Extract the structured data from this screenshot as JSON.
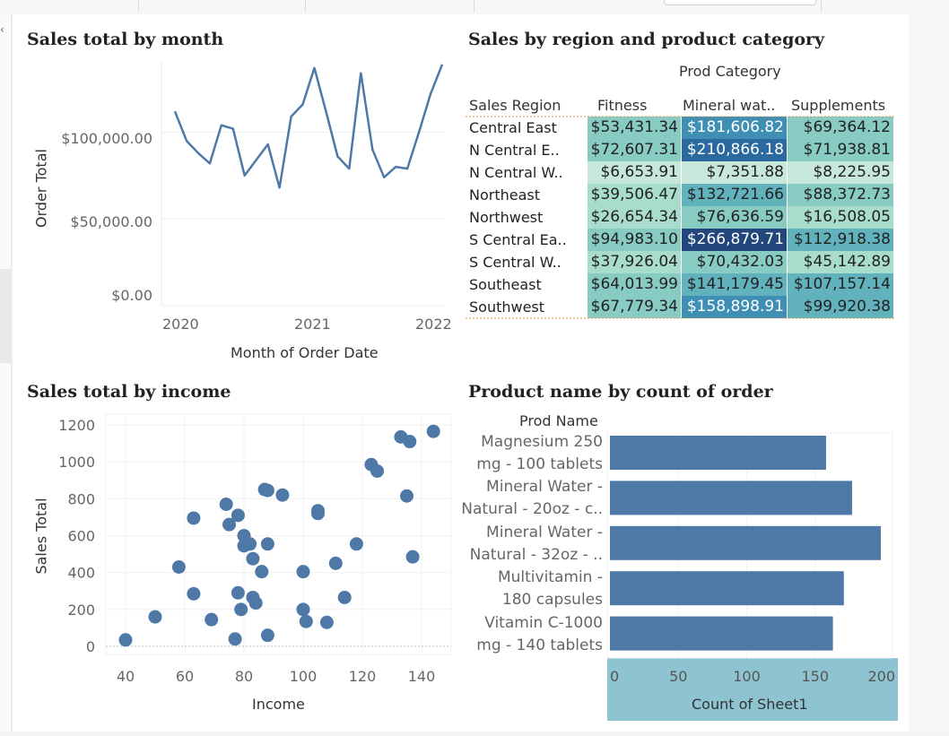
{
  "chrome": {
    "back_glyph": "‹"
  },
  "chart_data": [
    {
      "id": "sales-by-month",
      "type": "line",
      "title": "Sales total by month",
      "xlabel": "Month of Order Date",
      "ylabel": "Order Total",
      "x_ticks": [
        "2020",
        "2021",
        "2022"
      ],
      "y_ticks": [
        "$0.00",
        "$50,000.00",
        "$100,000.00"
      ],
      "ylim": [
        0,
        140000
      ],
      "series": [
        {
          "color": "#4e79a7",
          "values": [
            112000,
            95000,
            88000,
            82000,
            104000,
            102000,
            75000,
            84000,
            93000,
            68000,
            109000,
            116000,
            137000,
            112000,
            86000,
            79000,
            134000,
            90000,
            74000,
            80000,
            79000,
            100000,
            122000,
            139000
          ]
        }
      ]
    },
    {
      "id": "sales-by-region-category",
      "type": "table",
      "title": "Sales by  region and product category",
      "column_group_label": "Prod Category",
      "row_header": "Sales Region",
      "columns": [
        "Fitness",
        "Mineral wat..",
        "Supplements"
      ],
      "rows": [
        {
          "region": "Central East",
          "cells": [
            "$53,431.34",
            "$181,606.82",
            "$69,364.12"
          ],
          "values": [
            53431.34,
            181606.82,
            69364.12
          ]
        },
        {
          "region": "N Central E..",
          "cells": [
            "$72,607.31",
            "$210,866.18",
            "$71,938.81"
          ],
          "values": [
            72607.31,
            210866.18,
            71938.81
          ]
        },
        {
          "region": "N Central W..",
          "cells": [
            "$6,653.91",
            "$7,351.88",
            "$8,225.95"
          ],
          "values": [
            6653.91,
            7351.88,
            8225.95
          ]
        },
        {
          "region": "Northeast",
          "cells": [
            "$39,506.47",
            "$132,721.66",
            "$88,372.73"
          ],
          "values": [
            39506.47,
            132721.66,
            88372.73
          ]
        },
        {
          "region": "Northwest",
          "cells": [
            "$26,654.34",
            "$76,636.59",
            "$16,508.05"
          ],
          "values": [
            26654.34,
            76636.59,
            16508.05
          ]
        },
        {
          "region": "S Central Ea..",
          "cells": [
            "$94,983.10",
            "$266,879.71",
            "$112,918.38"
          ],
          "values": [
            94983.1,
            266879.71,
            112918.38
          ]
        },
        {
          "region": "S Central W..",
          "cells": [
            "$37,926.04",
            "$70,432.03",
            "$45,142.89"
          ],
          "values": [
            37926.04,
            70432.03,
            45142.89
          ]
        },
        {
          "region": "Southeast",
          "cells": [
            "$64,013.99",
            "$141,179.45",
            "$107,157.14"
          ],
          "values": [
            64013.99,
            141179.45,
            107157.14
          ]
        },
        {
          "region": "Southwest",
          "cells": [
            "$67,779.34",
            "$158,898.91",
            "$99,920.38"
          ],
          "values": [
            67779.34,
            158898.91,
            99920.38
          ]
        }
      ]
    },
    {
      "id": "sales-by-income",
      "type": "scatter",
      "title": "Sales total by income",
      "xlabel": "Income",
      "ylabel": "Sales Total",
      "x_ticks": [
        "40",
        "60",
        "80",
        "100",
        "120",
        "140"
      ],
      "y_ticks": [
        "0",
        "200",
        "400",
        "600",
        "800",
        "1000",
        "1200"
      ],
      "xlim": [
        35,
        146
      ],
      "ylim": [
        0,
        1230
      ],
      "color": "#4e79a7",
      "points": [
        [
          40,
          35
        ],
        [
          50,
          160
        ],
        [
          58,
          430
        ],
        [
          63,
          695
        ],
        [
          63,
          285
        ],
        [
          69,
          145
        ],
        [
          74,
          770
        ],
        [
          75,
          660
        ],
        [
          77,
          40
        ],
        [
          78,
          290
        ],
        [
          78,
          710
        ],
        [
          79,
          200
        ],
        [
          80,
          600
        ],
        [
          80,
          545
        ],
        [
          82,
          555
        ],
        [
          83,
          475
        ],
        [
          83,
          265
        ],
        [
          84,
          235
        ],
        [
          86,
          405
        ],
        [
          87,
          850
        ],
        [
          88,
          60
        ],
        [
          88,
          845
        ],
        [
          88,
          555
        ],
        [
          93,
          820
        ],
        [
          100,
          405
        ],
        [
          100,
          200
        ],
        [
          101,
          135
        ],
        [
          105,
          735
        ],
        [
          105,
          720
        ],
        [
          108,
          130
        ],
        [
          111,
          450
        ],
        [
          114,
          265
        ],
        [
          118,
          555
        ],
        [
          123,
          985
        ],
        [
          125,
          950
        ],
        [
          133,
          1135
        ],
        [
          135,
          815
        ],
        [
          136,
          1110
        ],
        [
          137,
          485
        ],
        [
          144,
          1165
        ]
      ]
    },
    {
      "id": "product-by-count",
      "type": "bar",
      "orientation": "horizontal",
      "title": "Product name by count of order",
      "row_header": "Prod Name",
      "xlabel": "Count of Sheet1",
      "x_ticks": [
        "0",
        "50",
        "100",
        "150",
        "200"
      ],
      "xlim": [
        0,
        205
      ],
      "color": "#4e79a7",
      "categories": [
        [
          "Magnesium 250",
          "mg - 100 tablets"
        ],
        [
          "Mineral Water -",
          "Natural - 20oz - c.."
        ],
        [
          "Mineral Water -",
          "Natural -  32oz - .."
        ],
        [
          "Multivitamin -",
          "180 capsules"
        ],
        [
          "Vitamin C-1000",
          "mg - 140 tablets"
        ]
      ],
      "values": [
        158,
        177,
        198,
        171,
        163
      ]
    }
  ]
}
